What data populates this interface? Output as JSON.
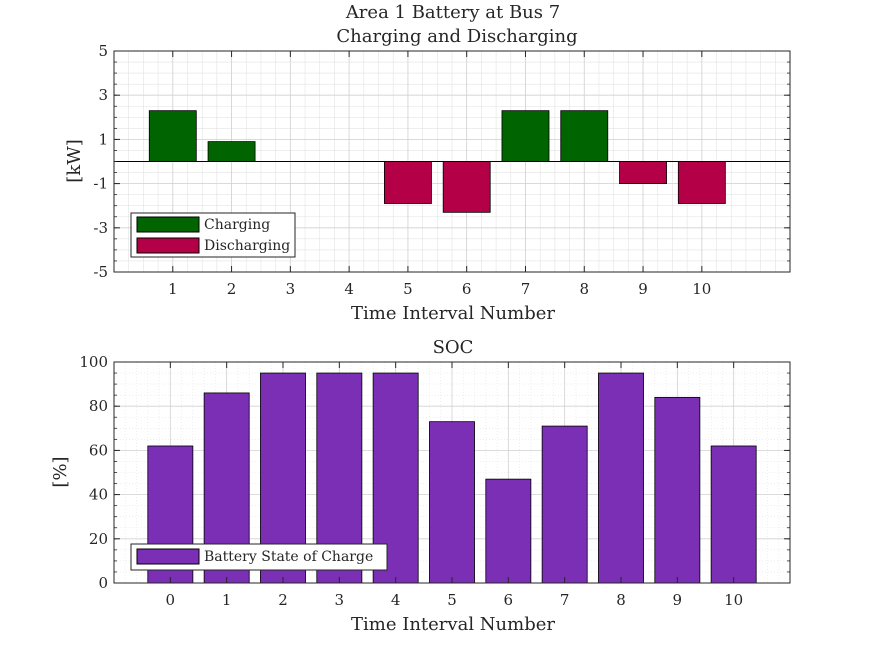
{
  "chart_data": [
    {
      "type": "bar",
      "title": [
        "Area 1 Battery at Bus 7",
        "Charging and Discharging"
      ],
      "xlabel": "Time Interval Number",
      "ylabel": "[kW]",
      "xlim": [
        0,
        11.5
      ],
      "ylim": [
        -5,
        5
      ],
      "xticks": [
        "1",
        "2",
        "3",
        "4",
        "5",
        "6",
        "7",
        "8",
        "9",
        "10"
      ],
      "yticks": [
        "-5",
        "-3",
        "-1",
        "1",
        "3",
        "5"
      ],
      "categories": [
        1,
        2,
        3,
        4,
        5,
        6,
        7,
        8,
        9,
        10
      ],
      "values": [
        2.3,
        0.9,
        0,
        0,
        -1.9,
        -2.3,
        2.3,
        2.3,
        -1.0,
        -1.9
      ],
      "series": [
        {
          "name": "Charging",
          "color": "#006400"
        },
        {
          "name": "Discharging",
          "color": "#b40047"
        }
      ],
      "legend": "bottom-left",
      "grid": true,
      "minor_grid": true
    },
    {
      "type": "bar",
      "title": "SOC",
      "xlabel": "Time Interval Number",
      "ylabel": "[%]",
      "xlim": [
        -1,
        11
      ],
      "ylim": [
        0,
        100
      ],
      "xticks": [
        "0",
        "1",
        "2",
        "3",
        "4",
        "5",
        "6",
        "7",
        "8",
        "9",
        "10"
      ],
      "yticks": [
        "0",
        "20",
        "40",
        "60",
        "80",
        "100"
      ],
      "categories": [
        0,
        1,
        2,
        3,
        4,
        5,
        6,
        7,
        8,
        9,
        10
      ],
      "values": [
        62,
        86,
        95,
        95,
        95,
        73,
        47,
        71,
        95,
        84,
        62
      ],
      "series": [
        {
          "name": "Battery State of Charge",
          "color": "#7b2fb5"
        }
      ],
      "legend": "bottom-left",
      "grid": true,
      "minor_grid": true
    }
  ]
}
